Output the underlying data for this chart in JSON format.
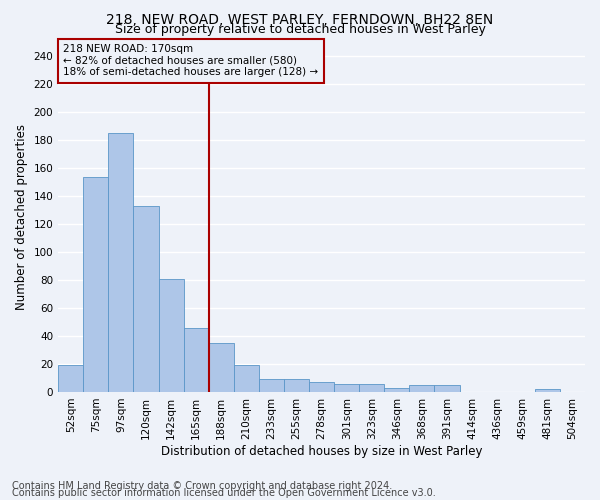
{
  "title1": "218, NEW ROAD, WEST PARLEY, FERNDOWN, BH22 8EN",
  "title2": "Size of property relative to detached houses in West Parley",
  "xlabel": "Distribution of detached houses by size in West Parley",
  "ylabel": "Number of detached properties",
  "categories": [
    "52sqm",
    "75sqm",
    "97sqm",
    "120sqm",
    "142sqm",
    "165sqm",
    "188sqm",
    "210sqm",
    "233sqm",
    "255sqm",
    "278sqm",
    "301sqm",
    "323sqm",
    "346sqm",
    "368sqm",
    "391sqm",
    "414sqm",
    "436sqm",
    "459sqm",
    "481sqm",
    "504sqm"
  ],
  "values": [
    19,
    154,
    185,
    133,
    81,
    46,
    35,
    19,
    9,
    9,
    7,
    6,
    6,
    3,
    5,
    5,
    0,
    0,
    0,
    2,
    0
  ],
  "bar_color": "#aec6e8",
  "bar_edge_color": "#5a96c8",
  "vline_x": 5.5,
  "vline_color": "#aa0000",
  "annotation_lines": [
    "218 NEW ROAD: 170sqm",
    "← 82% of detached houses are smaller (580)",
    "18% of semi-detached houses are larger (128) →"
  ],
  "annotation_box_color": "#aa0000",
  "ylim": [
    0,
    250
  ],
  "yticks": [
    0,
    20,
    40,
    60,
    80,
    100,
    120,
    140,
    160,
    180,
    200,
    220,
    240
  ],
  "footnote1": "Contains HM Land Registry data © Crown copyright and database right 2024.",
  "footnote2": "Contains public sector information licensed under the Open Government Licence v3.0.",
  "background_color": "#eef2f9",
  "grid_color": "#ffffff",
  "title_fontsize": 10,
  "subtitle_fontsize": 9,
  "axis_label_fontsize": 8.5,
  "tick_fontsize": 7.5,
  "footnote_fontsize": 7,
  "annotation_fontsize": 7.5
}
